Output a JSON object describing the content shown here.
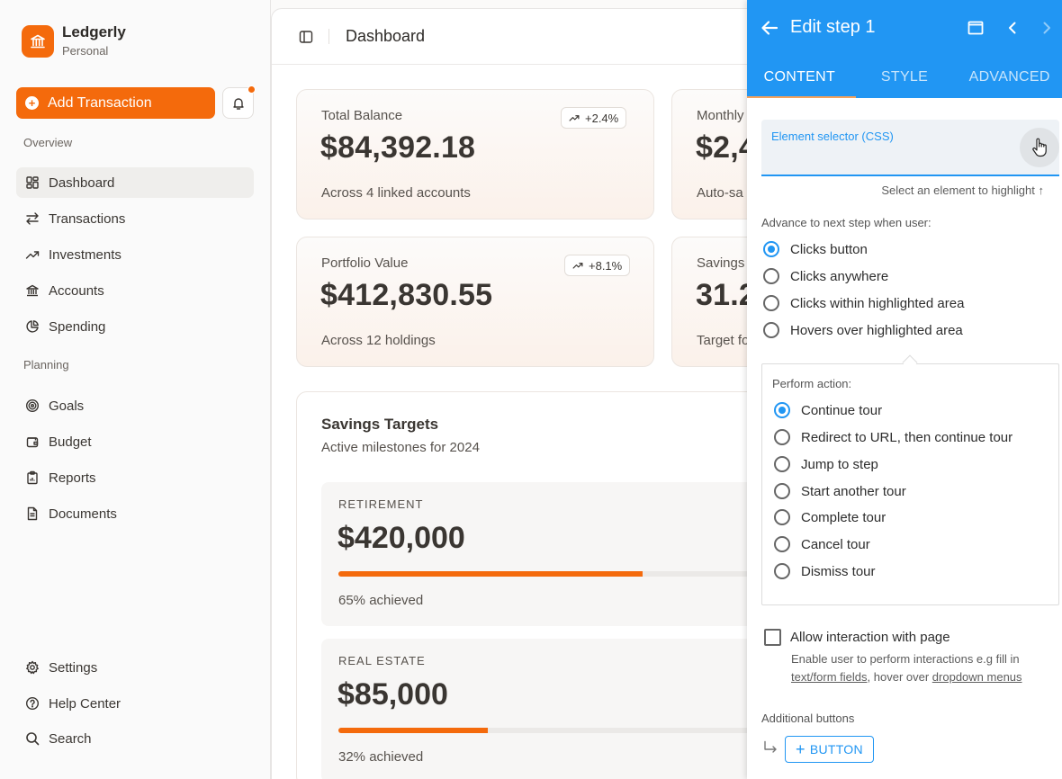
{
  "brand": {
    "name": "Ledgerly",
    "subtitle": "Personal"
  },
  "sidebar": {
    "add_button": "Add Transaction",
    "sections": {
      "overview": "Overview",
      "planning": "Planning"
    },
    "overview_items": [
      {
        "label": "Dashboard",
        "icon": "grid-icon",
        "active": true
      },
      {
        "label": "Transactions",
        "icon": "arrows-icon"
      },
      {
        "label": "Investments",
        "icon": "trending-up-icon"
      },
      {
        "label": "Accounts",
        "icon": "bank-icon"
      },
      {
        "label": "Spending",
        "icon": "pie-chart-icon"
      }
    ],
    "planning_items": [
      {
        "label": "Goals",
        "icon": "target-icon"
      },
      {
        "label": "Budget",
        "icon": "wallet-icon"
      },
      {
        "label": "Reports",
        "icon": "clipboard-icon"
      },
      {
        "label": "Documents",
        "icon": "document-icon"
      }
    ],
    "bottom_items": [
      {
        "label": "Settings",
        "icon": "gear-icon"
      },
      {
        "label": "Help Center",
        "icon": "help-icon"
      },
      {
        "label": "Search",
        "icon": "search-icon"
      }
    ]
  },
  "header": {
    "title": "Dashboard"
  },
  "cards": [
    {
      "label": "Total Balance",
      "value": "$84,392.18",
      "foot": "Across 4 linked accounts",
      "badge": "+2.4%"
    },
    {
      "label": "Monthly",
      "value": "$2,4",
      "foot": "Auto-sa"
    },
    {
      "label": "Portfolio Value",
      "value": "$412,830.55",
      "foot": "Across 12 holdings",
      "badge": "+8.1%"
    },
    {
      "label": "Savings",
      "value": "31.2",
      "foot": "Target fo"
    }
  ],
  "savings_targets": {
    "title": "Savings Targets",
    "subtitle": "Active milestones for 2024",
    "goals": [
      {
        "name": "RETIREMENT",
        "value": "$420,000",
        "progress": 0.65,
        "note": "65% achieved"
      },
      {
        "name": "REAL ESTATE",
        "value": "$85,000",
        "progress": 0.32,
        "note": "32% achieved"
      }
    ]
  },
  "editor": {
    "title": "Edit step 1",
    "tabs": [
      "CONTENT",
      "STYLE",
      "ADVANCED"
    ],
    "active_tab": "CONTENT",
    "selector_label": "Element selector (CSS)",
    "selector_helper": "Select an element to highlight ↑",
    "advance_label": "Advance to next step when user:",
    "advance_options": [
      "Clicks button",
      "Clicks anywhere",
      "Clicks within highlighted area",
      "Hovers over highlighted area"
    ],
    "advance_selected": "Clicks button",
    "action_label": "Perform action:",
    "action_options": [
      "Continue tour",
      "Redirect to URL, then continue tour",
      "Jump to step",
      "Start another tour",
      "Complete tour",
      "Cancel tour",
      "Dismiss tour"
    ],
    "action_selected": "Continue tour",
    "allow_interaction_label": "Allow interaction with page",
    "allow_interaction_checked": false,
    "allow_help_prefix": "Enable user to perform interactions e.g fill in ",
    "allow_help_link1": "text/form fields",
    "allow_help_mid": ", hover over ",
    "allow_help_link2": "dropdown menus",
    "additional_label": "Additional buttons",
    "add_button_label": "BUTTON"
  },
  "colors": {
    "accent": "#f46a0c",
    "panel_blue": "#2196f3"
  }
}
